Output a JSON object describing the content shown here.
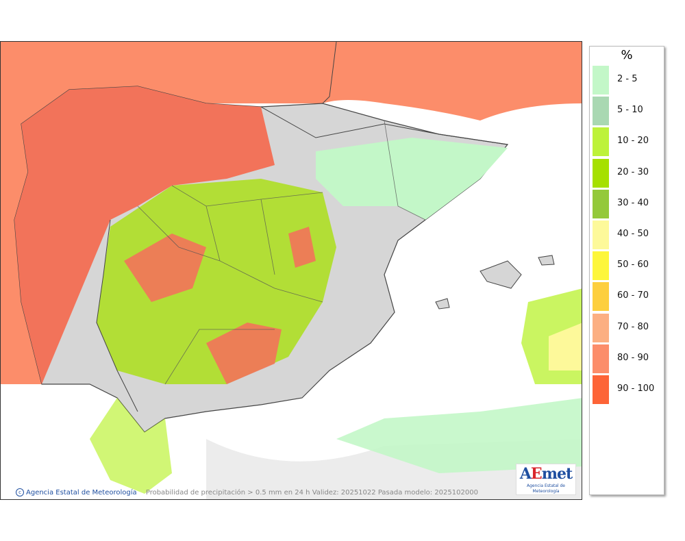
{
  "map": {
    "footer_agency": "Agencia Estatal de Meteorología",
    "footer_caption": "Probabilidad de precipitación > 0.5 mm en 24 h Validez: 20251022 Pasada modelo: 2025102000",
    "logo_text": [
      "A",
      "E",
      "met"
    ],
    "logo_subtitle": "Agencia Estatal de Meteorología"
  },
  "legend": {
    "unit": "%",
    "items": [
      {
        "label": "2 - 5",
        "color": "#c3f7c8"
      },
      {
        "label": "5 - 10",
        "color": "#a9d8b2"
      },
      {
        "label": "10 - 20",
        "color": "#bdf23a"
      },
      {
        "label": "20 - 30",
        "color": "#a6e000"
      },
      {
        "label": "30 - 40",
        "color": "#94c93a"
      },
      {
        "label": "40 - 50",
        "color": "#fdf99a"
      },
      {
        "label": "50 - 60",
        "color": "#fdf63c"
      },
      {
        "label": "60 - 70",
        "color": "#fdcf3e"
      },
      {
        "label": "70 - 80",
        "color": "#fcaf82"
      },
      {
        "label": "80 - 90",
        "color": "#fc8d6a"
      },
      {
        "label": "90 - 100",
        "color": "#fd6437"
      }
    ]
  }
}
